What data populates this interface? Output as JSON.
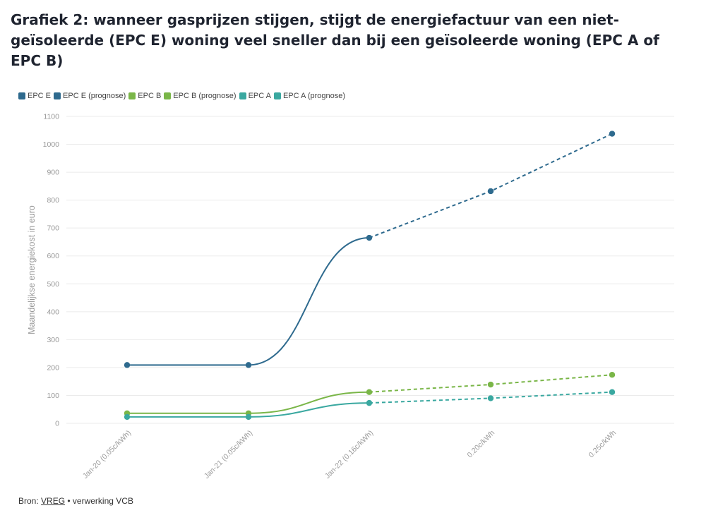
{
  "title": "Grafiek 2: wanneer gasprijzen stijgen, stijgt de energiefactuur van een niet-geïsoleerde (EPC E) woning veel sneller dan bij een geïsoleerde woning (EPC A of EPC B)",
  "source": {
    "prefix": "Bron:",
    "link": "VREG",
    "suffix": "• verwerking VCB"
  },
  "colors": {
    "epc_e": "#2e6a8e",
    "epc_b": "#7ab648",
    "epc_a": "#3aa8a0",
    "grid": "#ebebeb",
    "axis_text": "#9a9a9a"
  },
  "chart_data": {
    "type": "line",
    "title": "Grafiek 2: wanneer gasprijzen stijgen, stijgt de energiefactuur van een niet-geïsoleerde (EPC E) woning veel sneller dan bij een geïsoleerde woning (EPC A of EPC B)",
    "xlabel": "",
    "ylabel": "Maandelijkse energiekost in euro",
    "ylim": [
      0,
      1100
    ],
    "yticks": [
      0,
      100,
      200,
      300,
      400,
      500,
      600,
      700,
      800,
      900,
      1000,
      1100
    ],
    "categories": [
      "Jan-20 (0.05c/kWh)",
      "Jan-21 (0.05c/kWh)",
      "Jan-22 (0.16c/kWh)",
      "0.20c/kWh",
      "0.25c/kWh"
    ],
    "legend_position": "top-left",
    "series": [
      {
        "name": "EPC E",
        "key": "epc_e",
        "style": "solid",
        "values": [
          209,
          209,
          665,
          null,
          null
        ]
      },
      {
        "name": "EPC E (prognose)",
        "key": "epc_e",
        "style": "dashed",
        "values": [
          null,
          null,
          665,
          832,
          1038
        ]
      },
      {
        "name": "EPC B",
        "key": "epc_b",
        "style": "solid",
        "values": [
          36,
          36,
          112,
          null,
          null
        ]
      },
      {
        "name": "EPC B (prognose)",
        "key": "epc_b",
        "style": "dashed",
        "values": [
          null,
          null,
          112,
          139,
          174
        ]
      },
      {
        "name": "EPC A",
        "key": "epc_a",
        "style": "solid",
        "values": [
          23,
          23,
          73,
          null,
          null
        ]
      },
      {
        "name": "EPC A (prognose)",
        "key": "epc_a",
        "style": "dashed",
        "values": [
          null,
          null,
          73,
          90,
          112
        ]
      }
    ]
  }
}
